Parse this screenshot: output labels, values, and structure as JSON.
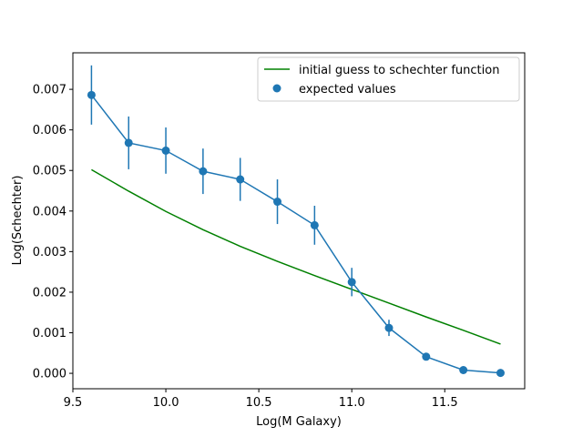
{
  "chart_data": {
    "type": "line",
    "xlabel": "Log(M Galaxy)",
    "ylabel": "Log(Schechter)",
    "xlim": [
      9.5,
      11.93
    ],
    "ylim": [
      -0.00038,
      0.0079
    ],
    "xticks": [
      9.5,
      10.0,
      10.5,
      11.0,
      11.5
    ],
    "xtick_labels": [
      "9.5",
      "10.0",
      "10.5",
      "11.0",
      "11.5"
    ],
    "yticks": [
      0.0,
      0.001,
      0.002,
      0.003,
      0.004,
      0.005,
      0.006,
      0.007
    ],
    "ytick_labels": [
      "0.000",
      "0.001",
      "0.002",
      "0.003",
      "0.004",
      "0.005",
      "0.006",
      "0.007"
    ],
    "grid": false,
    "legend_position": "top-right",
    "series": [
      {
        "name": "initial guess to schechter function",
        "kind": "line",
        "color": "#008000",
        "x": [
          9.6,
          9.8,
          10.0,
          10.2,
          10.4,
          10.6,
          10.8,
          11.0,
          11.2,
          11.4,
          11.6,
          11.8
        ],
        "y": [
          0.00502,
          0.00449,
          0.00399,
          0.00354,
          0.00313,
          0.00276,
          0.00241,
          0.00207,
          0.00173,
          0.00139,
          0.00106,
          0.00072
        ]
      },
      {
        "name": "expected values",
        "kind": "scatter+errorbar",
        "color": "#1f77b4",
        "x": [
          9.6,
          9.8,
          10.0,
          10.2,
          10.4,
          10.6,
          10.8,
          11.0,
          11.2,
          11.4,
          11.6,
          11.8
        ],
        "y": [
          0.00686,
          0.00568,
          0.00549,
          0.00498,
          0.00478,
          0.00423,
          0.00365,
          0.00225,
          0.00112,
          0.00041,
          8e-05,
          1e-05
        ],
        "yerr": [
          0.00073,
          0.00065,
          0.00057,
          0.00056,
          0.00053,
          0.00055,
          0.00048,
          0.00035,
          0.0002,
          5e-05,
          2e-05,
          1e-05
        ]
      }
    ]
  }
}
